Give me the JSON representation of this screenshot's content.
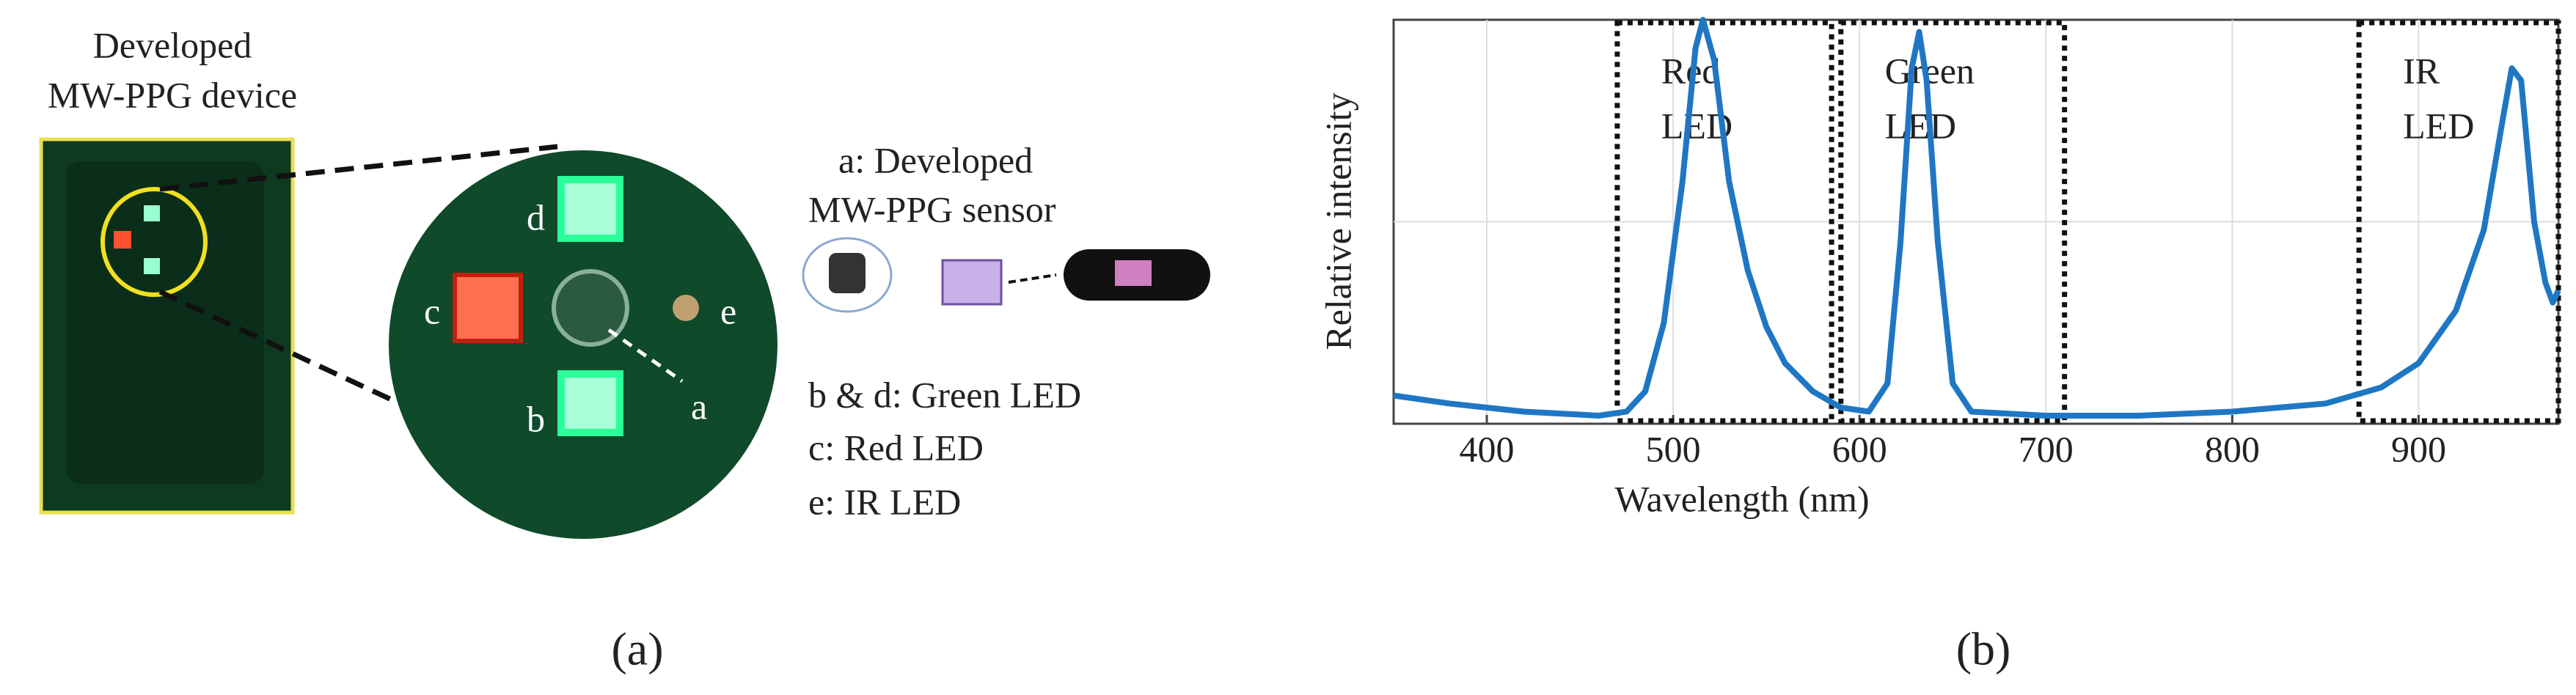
{
  "panel_a": {
    "device_title": [
      "Developed",
      "MW-PPG device"
    ],
    "led_labels": [
      "d",
      "c",
      "b",
      "e",
      "a"
    ],
    "sensor_title": [
      "a: Developed",
      "MW-PPG sensor"
    ],
    "legend": [
      "b & d: Green LED",
      "c: Red LED",
      "e: IR LED"
    ]
  },
  "captions": [
    "(a)",
    "(b)"
  ],
  "chart_data": {
    "type": "line",
    "x_label": "Wavelength (nm)",
    "y_label": "Relative intensity",
    "x": [
      350,
      380,
      420,
      460,
      475,
      485,
      495,
      505,
      512,
      516,
      522,
      530,
      540,
      550,
      560,
      575,
      590,
      605,
      615,
      622,
      628,
      632,
      636,
      642,
      650,
      660,
      700,
      750,
      800,
      850,
      880,
      900,
      920,
      935,
      945,
      950,
      955,
      962,
      968,
      972,
      975
    ],
    "series": [
      {
        "color": "#1f77c4",
        "values": [
          0.07,
          0.05,
          0.03,
          0.02,
          0.03,
          0.08,
          0.25,
          0.6,
          0.93,
          1.0,
          0.9,
          0.6,
          0.38,
          0.24,
          0.15,
          0.08,
          0.04,
          0.03,
          0.1,
          0.45,
          0.88,
          0.97,
          0.85,
          0.45,
          0.1,
          0.03,
          0.02,
          0.02,
          0.03,
          0.05,
          0.09,
          0.15,
          0.28,
          0.48,
          0.75,
          0.88,
          0.85,
          0.5,
          0.35,
          0.3,
          0.33
        ]
      }
    ],
    "xlim": [
      350,
      975
    ],
    "ylim": [
      0,
      1
    ],
    "xticks": [
      400,
      500,
      600,
      700,
      800,
      900
    ],
    "grid": true,
    "regions": [
      {
        "lines": [
          "Red",
          "LED"
        ],
        "range": [
          470,
          585
        ]
      },
      {
        "lines": [
          "Green",
          "LED"
        ],
        "range": [
          590,
          710
        ]
      },
      {
        "lines": [
          "IR",
          "LED"
        ],
        "range": [
          868,
          975
        ]
      }
    ]
  }
}
